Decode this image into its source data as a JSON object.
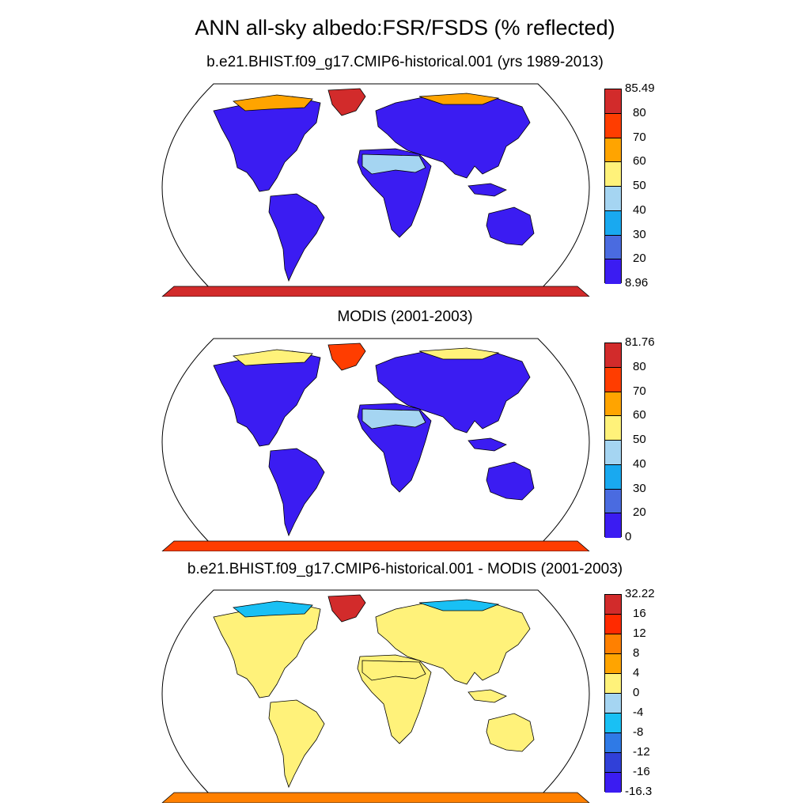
{
  "main_title": "ANN all-sky albedo:FSR/FSDS (% reflected)",
  "panels": [
    {
      "title": "b.e21.BHIST.f09_g17.CMIP6-historical.001 (yrs 1989-2013)",
      "colorbar": {
        "colors": [
          "#3b1cf2",
          "#4a6be0",
          "#19a9f0",
          "#a5d5f2",
          "#fff27a",
          "#ffa400",
          "#ff3d00",
          "#d22b2b"
        ],
        "labels": [
          "85.49",
          "80",
          "70",
          "60",
          "50",
          "40",
          "30",
          "20",
          "8.96"
        ]
      },
      "land_colors": {
        "ocean": "#ffffff",
        "land": "#3b1cf2",
        "desert": "#a5d5f2",
        "arctic": "#ffa400",
        "greenland": "#d22b2b",
        "antarctica": "#d22b2b"
      }
    },
    {
      "title": "MODIS (2001-2003)",
      "colorbar": {
        "colors": [
          "#3b1cf2",
          "#4a6be0",
          "#19a9f0",
          "#a5d5f2",
          "#fff27a",
          "#ffa400",
          "#ff3d00",
          "#d22b2b"
        ],
        "labels": [
          "81.76",
          "80",
          "70",
          "60",
          "50",
          "40",
          "30",
          "20",
          "0"
        ]
      },
      "land_colors": {
        "ocean": "#ffffff",
        "land": "#3b1cf2",
        "desert": "#a5d5f2",
        "arctic": "#fff27a",
        "greenland": "#ff3d00",
        "antarctica": "#ff3d00"
      }
    },
    {
      "title": "b.e21.BHIST.f09_g17.CMIP6-historical.001 - MODIS (2001-2003)",
      "colorbar": {
        "colors": [
          "#3b1cf2",
          "#3040d8",
          "#2f7ae6",
          "#19c0f4",
          "#a5d5f2",
          "#fff27a",
          "#ffa400",
          "#ff8000",
          "#ff2a00",
          "#d22b2b"
        ],
        "labels": [
          "32.22",
          "16",
          "12",
          "8",
          "4",
          "0",
          "-4",
          "-8",
          "-12",
          "-16",
          "-16.3"
        ]
      },
      "land_colors": {
        "ocean": "#ffffff",
        "land": "#fff27a",
        "desert": "#fff27a",
        "arctic": "#19c0f4",
        "greenland": "#d22b2b",
        "antarctica": "#ff8000"
      }
    }
  ]
}
